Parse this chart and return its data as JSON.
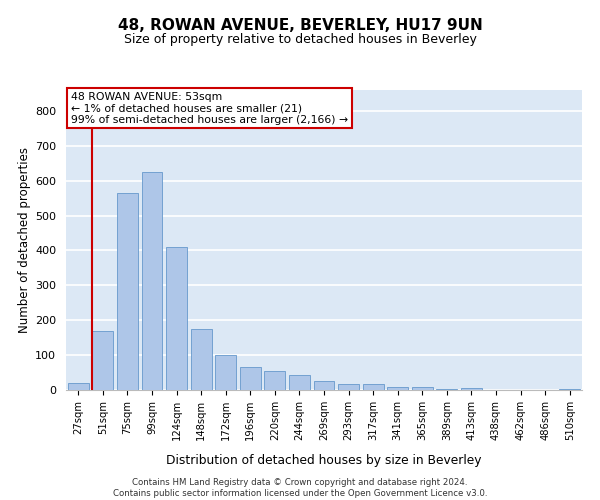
{
  "title_line1": "48, ROWAN AVENUE, BEVERLEY, HU17 9UN",
  "title_line2": "Size of property relative to detached houses in Beverley",
  "xlabel": "Distribution of detached houses by size in Beverley",
  "ylabel": "Number of detached properties",
  "footer_line1": "Contains HM Land Registry data © Crown copyright and database right 2024.",
  "footer_line2": "Contains public sector information licensed under the Open Government Licence v3.0.",
  "bar_color": "#aec6e8",
  "bar_edge_color": "#6699cc",
  "annotation_text": "48 ROWAN AVENUE: 53sqm\n← 1% of detached houses are smaller (21)\n99% of semi-detached houses are larger (2,166) →",
  "annotation_box_color": "#ffffff",
  "annotation_box_edge": "#cc0000",
  "bin_labels": [
    "27sqm",
    "51sqm",
    "75sqm",
    "99sqm",
    "124sqm",
    "148sqm",
    "172sqm",
    "196sqm",
    "220sqm",
    "244sqm",
    "269sqm",
    "293sqm",
    "317sqm",
    "341sqm",
    "365sqm",
    "389sqm",
    "413sqm",
    "438sqm",
    "462sqm",
    "486sqm",
    "510sqm"
  ],
  "bar_heights": [
    21,
    170,
    565,
    625,
    410,
    175,
    100,
    65,
    55,
    43,
    25,
    17,
    16,
    8,
    8,
    2,
    5,
    1,
    1,
    1,
    4
  ],
  "ylim": [
    0,
    860
  ],
  "yticks": [
    0,
    100,
    200,
    300,
    400,
    500,
    600,
    700,
    800
  ],
  "background_color": "#dce8f5",
  "grid_color": "#ffffff",
  "vline_color": "#cc0000",
  "vline_xindex": 1
}
